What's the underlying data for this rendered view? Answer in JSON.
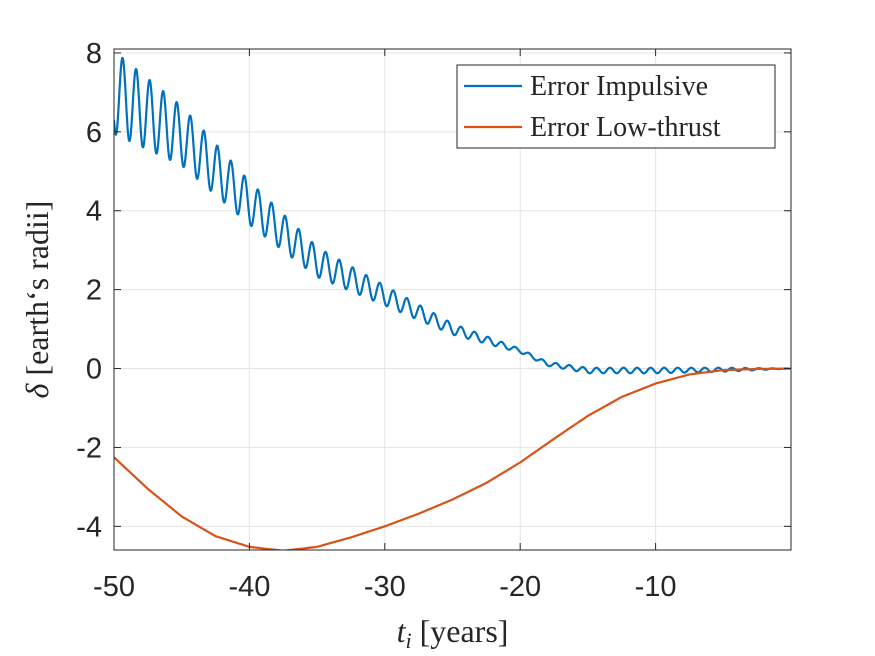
{
  "chart_data": {
    "type": "line",
    "title": "",
    "xlabel": {
      "symbol": "t",
      "subscript": "i",
      "unit": " [years]"
    },
    "ylabel": {
      "symbol": "δ",
      "unit": " [earth‘s radii]"
    },
    "xlim": [
      -50,
      0
    ],
    "ylim": [
      -4.6,
      8.1
    ],
    "xticks": [
      -50,
      -40,
      -30,
      -20,
      -10
    ],
    "xtick_labels": [
      "-50",
      "-40",
      "-30",
      "-20",
      "-10"
    ],
    "yticks": [
      -4,
      -2,
      0,
      2,
      4,
      6,
      8
    ],
    "ytick_labels": [
      "-4",
      "-2",
      "0",
      "2",
      "4",
      "6",
      "8"
    ],
    "grid": true,
    "legend_position": "top-right",
    "series": [
      {
        "name": "Error Impulsive",
        "color": "#0072BD",
        "model": "oscillating",
        "trend_x": [
          -50,
          -45,
          -40,
          -35,
          -30,
          -25,
          -20,
          -18,
          -15,
          -10,
          -5,
          0
        ],
        "trend_y": [
          7.0,
          5.9,
          4.2,
          2.7,
          1.85,
          1.0,
          0.45,
          0.12,
          -0.05,
          -0.05,
          -0.03,
          0.0
        ],
        "amplitude_x": [
          -50,
          -45,
          -40,
          -35,
          -30,
          -25,
          -20,
          -18,
          -15,
          -10,
          -5,
          0
        ],
        "amplitude_y": [
          1.05,
          0.75,
          0.55,
          0.38,
          0.25,
          0.14,
          0.05,
          0.05,
          0.07,
          0.07,
          0.05,
          0.0
        ],
        "period_years": 1.0
      },
      {
        "name": "Error Low-thrust",
        "color": "#D95319",
        "model": "smooth",
        "x": [
          -50,
          -47.5,
          -45,
          -42.5,
          -40,
          -37.5,
          -35,
          -32.5,
          -30,
          -27.5,
          -25,
          -22.5,
          -20,
          -17.5,
          -15,
          -12.5,
          -10,
          -7.5,
          -5,
          -2.5,
          0
        ],
        "y": [
          -2.25,
          -3.05,
          -3.75,
          -4.25,
          -4.52,
          -4.62,
          -4.52,
          -4.28,
          -4.0,
          -3.68,
          -3.32,
          -2.9,
          -2.38,
          -1.78,
          -1.2,
          -0.72,
          -0.38,
          -0.15,
          -0.04,
          -0.01,
          0.0
        ]
      }
    ]
  }
}
